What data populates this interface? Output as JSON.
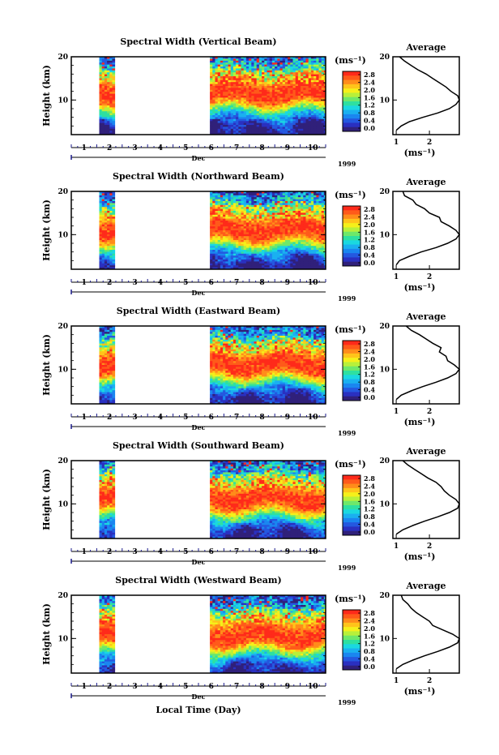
{
  "figure": {
    "xlabel": "Local Time (Day)",
    "month_label": "Dec",
    "year_label": "1999",
    "ylabel": "Height (km)",
    "unit_label": "(ms⁻¹)",
    "avg_title": "Average"
  },
  "colorbar": {
    "ticks": [
      "2.8",
      "2.4",
      "2.0",
      "1.6",
      "1.2",
      "0.8",
      "0.4",
      "0.0"
    ],
    "colors": [
      "#ff2a1a",
      "#ff5a1a",
      "#ff8c1a",
      "#ffc41a",
      "#f5f01a",
      "#b8f03a",
      "#6ee86a",
      "#2ee0a0",
      "#1ad8e0",
      "#1ab0f0",
      "#1a86f0",
      "#2458e0",
      "#2a30c0",
      "#30207a"
    ]
  },
  "chart_data": [
    {
      "type": "heatmap",
      "title": "Spectral Width (Vertical Beam)",
      "x_ticks": [
        "1",
        "2",
        "3",
        "4",
        "5",
        "6",
        "7",
        "8",
        "9",
        "10"
      ],
      "xlim": [
        0.5,
        10.5
      ],
      "y_ticks": [
        "10",
        "20"
      ],
      "ylim": [
        2,
        20
      ],
      "data_day_ranges": [
        [
          1.6,
          2.15
        ],
        [
          5.95,
          10.45
        ]
      ],
      "peak_height_km": 11.5,
      "avg_profile": {
        "title": "Average",
        "xlabel": "(ms⁻¹)",
        "x_ticks": [
          "1",
          "2"
        ],
        "xlim": [
          0.9,
          2.9
        ],
        "y_ticks": [
          "10",
          "20"
        ],
        "height_km": [
          3,
          4,
          5,
          6,
          7,
          8,
          9,
          10,
          11,
          12,
          13,
          14,
          15,
          16,
          17,
          18,
          19,
          20
        ],
        "width_ms": [
          1.0,
          1.15,
          1.4,
          1.8,
          2.25,
          2.6,
          2.8,
          2.9,
          2.85,
          2.65,
          2.5,
          2.3,
          2.1,
          1.9,
          1.65,
          1.45,
          1.25,
          1.1
        ]
      }
    },
    {
      "type": "heatmap",
      "title": "Spectral Width (Northward Beam)",
      "x_ticks": [
        "1",
        "2",
        "3",
        "4",
        "5",
        "6",
        "7",
        "8",
        "9",
        "10"
      ],
      "xlim": [
        0.5,
        10.5
      ],
      "y_ticks": [
        "10",
        "20"
      ],
      "ylim": [
        2,
        20
      ],
      "data_day_ranges": [
        [
          1.6,
          2.15
        ],
        [
          5.95,
          10.45
        ]
      ],
      "peak_height_km": 11.0,
      "avg_profile": {
        "title": "Average",
        "xlabel": "(ms⁻¹)",
        "x_ticks": [
          "1",
          "2"
        ],
        "xlim": [
          0.9,
          2.9
        ],
        "y_ticks": [
          "10",
          "20"
        ],
        "height_km": [
          3,
          4,
          5,
          6,
          7,
          8,
          9,
          10,
          11,
          12,
          13,
          14,
          15,
          16,
          17,
          18,
          19,
          20
        ],
        "width_ms": [
          1.0,
          1.1,
          1.4,
          1.75,
          2.2,
          2.55,
          2.8,
          2.9,
          2.8,
          2.6,
          2.35,
          2.3,
          2.0,
          1.85,
          1.6,
          1.5,
          1.25,
          1.2
        ]
      }
    },
    {
      "type": "heatmap",
      "title": "Spectral Width (Eastward Beam)",
      "x_ticks": [
        "1",
        "2",
        "3",
        "4",
        "5",
        "6",
        "7",
        "8",
        "9",
        "10"
      ],
      "xlim": [
        0.5,
        10.5
      ],
      "y_ticks": [
        "10",
        "20"
      ],
      "ylim": [
        2,
        20
      ],
      "data_day_ranges": [
        [
          1.6,
          2.15
        ],
        [
          5.95,
          10.45
        ]
      ],
      "peak_height_km": 11.0,
      "avg_profile": {
        "title": "Average",
        "xlabel": "(ms⁻¹)",
        "x_ticks": [
          "1",
          "2"
        ],
        "xlim": [
          0.9,
          2.9
        ],
        "y_ticks": [
          "10",
          "20"
        ],
        "height_km": [
          3,
          4,
          5,
          6,
          7,
          8,
          9,
          10,
          11,
          12,
          13,
          14,
          15,
          16,
          17,
          18,
          19,
          20
        ],
        "width_ms": [
          1.0,
          1.15,
          1.45,
          1.8,
          2.2,
          2.55,
          2.8,
          2.9,
          2.75,
          2.55,
          2.5,
          2.3,
          2.35,
          2.1,
          1.9,
          1.7,
          1.45,
          1.3
        ]
      }
    },
    {
      "type": "heatmap",
      "title": "Spectral Width (Southward Beam)",
      "x_ticks": [
        "1",
        "2",
        "3",
        "4",
        "5",
        "6",
        "7",
        "8",
        "9",
        "10"
      ],
      "xlim": [
        0.5,
        10.5
      ],
      "y_ticks": [
        "10",
        "20"
      ],
      "ylim": [
        2,
        20
      ],
      "data_day_ranges": [
        [
          1.6,
          2.15
        ],
        [
          5.95,
          10.45
        ]
      ],
      "peak_height_km": 11.0,
      "avg_profile": {
        "title": "Average",
        "xlabel": "(ms⁻¹)",
        "x_ticks": [
          "1",
          "2"
        ],
        "xlim": [
          0.9,
          2.9
        ],
        "y_ticks": [
          "10",
          "20"
        ],
        "height_km": [
          3,
          4,
          5,
          6,
          7,
          8,
          9,
          10,
          11,
          12,
          13,
          14,
          15,
          16,
          17,
          18,
          19,
          20
        ],
        "width_ms": [
          1.0,
          1.2,
          1.5,
          1.85,
          2.25,
          2.6,
          2.85,
          2.9,
          2.8,
          2.6,
          2.45,
          2.35,
          2.2,
          1.95,
          1.75,
          1.55,
          1.35,
          1.2
        ]
      }
    },
    {
      "type": "heatmap",
      "title": "Spectral Width (Westward Beam)",
      "x_ticks": [
        "1",
        "2",
        "3",
        "4",
        "5",
        "6",
        "7",
        "8",
        "9",
        "10"
      ],
      "xlim": [
        0.5,
        10.5
      ],
      "y_ticks": [
        "10",
        "20"
      ],
      "ylim": [
        2,
        20
      ],
      "data_day_ranges": [
        [
          1.6,
          2.15
        ],
        [
          5.95,
          10.45
        ]
      ],
      "peak_height_km": 10.5,
      "avg_profile": {
        "title": "Average",
        "xlabel": "(ms⁻¹)",
        "x_ticks": [
          "1",
          "2"
        ],
        "xlim": [
          0.9,
          2.9
        ],
        "y_ticks": [
          "10",
          "20"
        ],
        "height_km": [
          3,
          4,
          5,
          6,
          7,
          8,
          9,
          10,
          11,
          12,
          13,
          14,
          15,
          16,
          17,
          18,
          19,
          20
        ],
        "width_ms": [
          1.0,
          1.2,
          1.5,
          1.85,
          2.25,
          2.6,
          2.85,
          2.9,
          2.7,
          2.4,
          2.1,
          2.0,
          1.8,
          1.6,
          1.45,
          1.35,
          1.2,
          1.15
        ]
      }
    }
  ]
}
